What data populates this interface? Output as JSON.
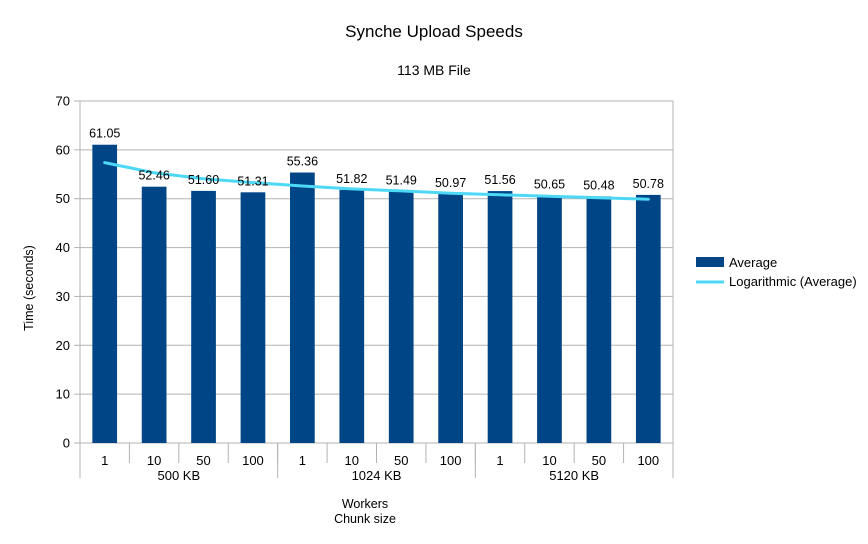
{
  "chart_data": {
    "type": "bar",
    "title": "Synche Upload Speeds",
    "subtitle": "113 MB File",
    "ylabel": "Time (seconds)",
    "xlabel_lines": [
      "Workers",
      "Chunk size"
    ],
    "ylim": [
      0,
      70
    ],
    "yticks": [
      0,
      10,
      20,
      30,
      40,
      50,
      60,
      70
    ],
    "grid": true,
    "legend_position": "right",
    "groups": [
      {
        "label": "500 KB",
        "categories": [
          "1",
          "10",
          "50",
          "100"
        ]
      },
      {
        "label": "1024 KB",
        "categories": [
          "1",
          "10",
          "50",
          "100"
        ]
      },
      {
        "label": "5120 KB",
        "categories": [
          "1",
          "10",
          "50",
          "100"
        ]
      }
    ],
    "series": [
      {
        "name": "Average",
        "type": "bar",
        "color": "#004586",
        "values": [
          61.05,
          52.46,
          51.6,
          51.31,
          55.36,
          51.82,
          51.49,
          50.97,
          51.56,
          50.65,
          50.48,
          50.78
        ],
        "data_labels": [
          "61.05",
          "52.46",
          "51.60",
          "51.31",
          "55.36",
          "51.82",
          "51.49",
          "50.97",
          "51.56",
          "50.65",
          "50.48",
          "50.78"
        ]
      },
      {
        "name": "Logarithmic (Average)",
        "type": "trendline",
        "color": "#4dd8f5",
        "values": [
          57.4,
          55.3,
          54.1,
          53.3,
          52.6,
          52.0,
          51.6,
          51.1,
          50.8,
          50.5,
          50.2,
          49.9
        ]
      }
    ]
  }
}
